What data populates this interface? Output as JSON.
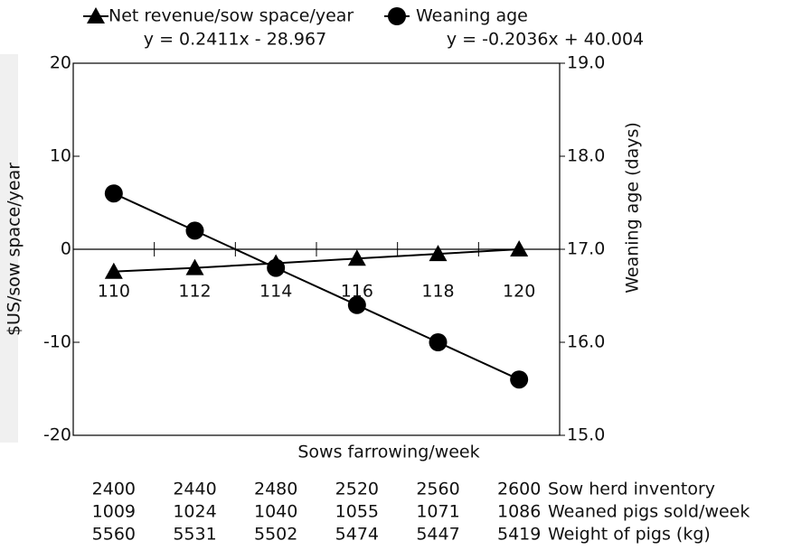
{
  "chart_data": {
    "type": "line",
    "xlabel": "Sows farrowing/week",
    "ylabel": "$US/sow space/year",
    "y2label": "Weaning age (days)",
    "x": [
      110,
      112,
      114,
      116,
      118,
      120
    ],
    "xlim": [
      109,
      121
    ],
    "xticks": [
      110,
      112,
      114,
      116,
      118,
      120
    ],
    "xminor_ticks": [
      111,
      113,
      115,
      117,
      119
    ],
    "ylim": [
      -20,
      20
    ],
    "yticks": [
      -20,
      -10,
      0,
      10,
      20
    ],
    "y2lim": [
      15,
      19
    ],
    "y2ticks": [
      {
        "value": 15,
        "label": "15.0"
      },
      {
        "value": 16,
        "label": "16.0"
      },
      {
        "value": 17,
        "label": "17.0"
      },
      {
        "value": 18,
        "label": "18.0"
      },
      {
        "value": 19,
        "label": "19.0"
      }
    ],
    "series": [
      {
        "name": "Net revenue/sow space/year",
        "marker": "triangle",
        "color": "#000000",
        "equation": "y = 0.2411x - 28.967",
        "values": [
          -2.4,
          -2.0,
          -1.5,
          -1.0,
          -0.5,
          0.0
        ]
      },
      {
        "name": "Weaning age",
        "marker": "circle",
        "color": "#000000",
        "axis": "y2",
        "equation": "y = -0.2036x + 40.004",
        "values": [
          17.6,
          17.2,
          16.8,
          16.4,
          16.0,
          15.6
        ]
      }
    ],
    "table_rows": [
      {
        "label": "Sow herd inventory",
        "values": [
          "2400",
          "2440",
          "2480",
          "2520",
          "2560",
          "2600"
        ]
      },
      {
        "label": "Weaned pigs sold/week",
        "values": [
          "1009",
          "1024",
          "1040",
          "1055",
          "1071",
          "1086"
        ]
      },
      {
        "label": "Weight of pigs (kg)",
        "values": [
          "5560",
          "5531",
          "5502",
          "5474",
          "5447",
          "5419"
        ]
      }
    ]
  }
}
